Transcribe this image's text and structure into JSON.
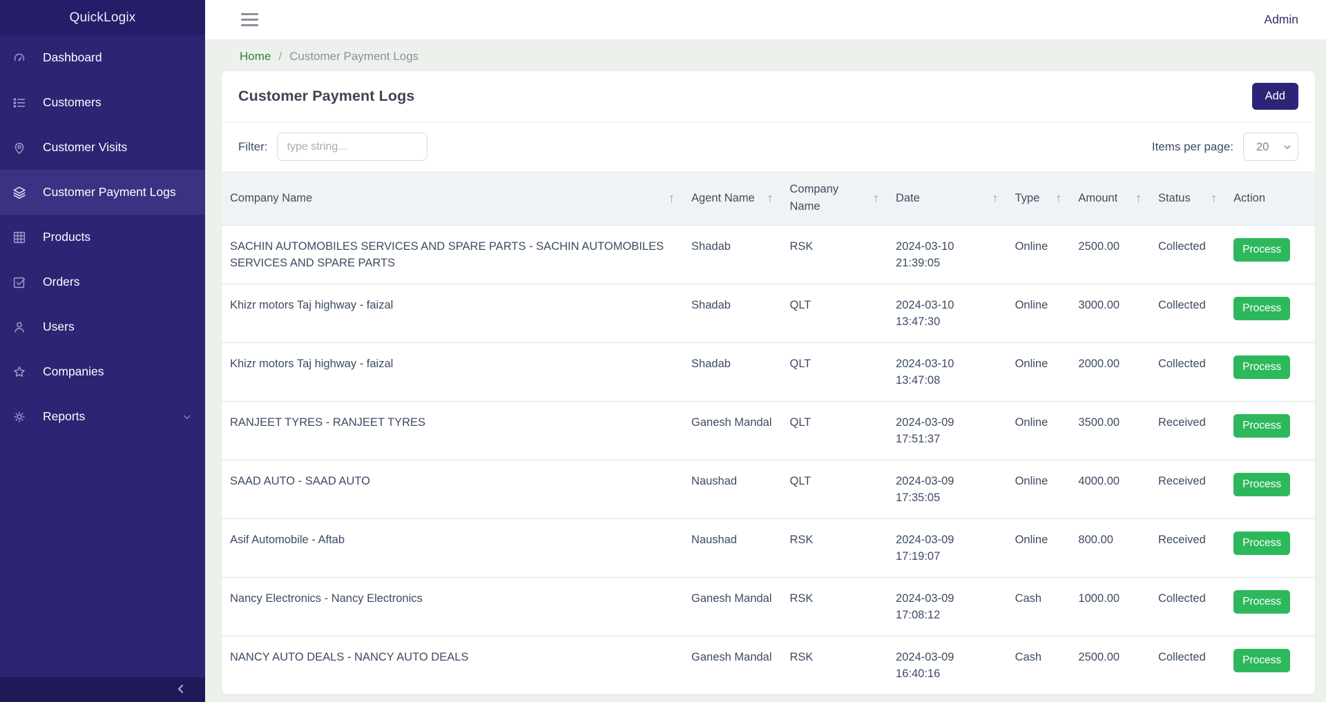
{
  "brand": "QuickLogix",
  "topbar": {
    "admin_label": "Admin"
  },
  "sidebar": {
    "items": [
      {
        "label": "Dashboard",
        "icon": "speedometer",
        "active": false
      },
      {
        "label": "Customers",
        "icon": "list",
        "active": false
      },
      {
        "label": "Customer Visits",
        "icon": "location-pin",
        "active": false
      },
      {
        "label": "Customer Payment Logs",
        "icon": "layers",
        "active": true
      },
      {
        "label": "Products",
        "icon": "grid",
        "active": false
      },
      {
        "label": "Orders",
        "icon": "check-square",
        "active": false
      },
      {
        "label": "Users",
        "icon": "user",
        "active": false
      },
      {
        "label": "Companies",
        "icon": "star",
        "active": false
      },
      {
        "label": "Reports",
        "icon": "gear",
        "active": false,
        "expandable": true
      }
    ]
  },
  "breadcrumb": {
    "home": "Home",
    "separator": "/",
    "current": "Customer Payment Logs"
  },
  "page": {
    "title": "Customer Payment Logs",
    "add_button": "Add",
    "filter_label": "Filter:",
    "filter_placeholder": "type string...",
    "items_per_page_label": "Items per page:",
    "items_per_page_value": "20"
  },
  "table": {
    "columns": [
      {
        "label": "Company Name",
        "sortable": true
      },
      {
        "label": "Agent Name",
        "sortable": true
      },
      {
        "label": "Company Name",
        "sortable": true
      },
      {
        "label": "Date",
        "sortable": true
      },
      {
        "label": "Type",
        "sortable": true
      },
      {
        "label": "Amount",
        "sortable": true
      },
      {
        "label": "Status",
        "sortable": true
      },
      {
        "label": "Action",
        "sortable": false
      }
    ],
    "action_label": "Process",
    "rows": [
      {
        "company": "SACHIN AUTOMOBILES SERVICES AND SPARE PARTS - SACHIN AUTOMOBILES SERVICES AND SPARE PARTS",
        "agent": "Shadab",
        "company_code": "RSK",
        "date": "2024-03-10",
        "time": "21:39:05",
        "type": "Online",
        "amount": "2500.00",
        "status": "Collected"
      },
      {
        "company": "Khizr motors Taj highway - faizal",
        "agent": "Shadab",
        "company_code": "QLT",
        "date": "2024-03-10",
        "time": "13:47:30",
        "type": "Online",
        "amount": "3000.00",
        "status": "Collected"
      },
      {
        "company": "Khizr motors Taj highway - faizal",
        "agent": "Shadab",
        "company_code": "QLT",
        "date": "2024-03-10",
        "time": "13:47:08",
        "type": "Online",
        "amount": "2000.00",
        "status": "Collected"
      },
      {
        "company": "RANJEET TYRES - RANJEET TYRES",
        "agent": "Ganesh Mandal",
        "company_code": "QLT",
        "date": "2024-03-09",
        "time": "17:51:37",
        "type": "Online",
        "amount": "3500.00",
        "status": "Received"
      },
      {
        "company": "SAAD AUTO - SAAD AUTO",
        "agent": "Naushad",
        "company_code": "QLT",
        "date": "2024-03-09",
        "time": "17:35:05",
        "type": "Online",
        "amount": "4000.00",
        "status": "Received"
      },
      {
        "company": "Asif Automobile - Aftab",
        "agent": "Naushad",
        "company_code": "RSK",
        "date": "2024-03-09",
        "time": "17:19:07",
        "type": "Online",
        "amount": "800.00",
        "status": "Received"
      },
      {
        "company": "Nancy Electronics - Nancy Electronics",
        "agent": "Ganesh Mandal",
        "company_code": "RSK",
        "date": "2024-03-09",
        "time": "17:08:12",
        "type": "Cash",
        "amount": "1000.00",
        "status": "Collected"
      },
      {
        "company": "NANCY AUTO DEALS - NANCY AUTO DEALS",
        "agent": "Ganesh Mandal",
        "company_code": "RSK",
        "date": "2024-03-09",
        "time": "16:40:16",
        "type": "Cash",
        "amount": "2500.00",
        "status": "Collected"
      }
    ]
  },
  "colors": {
    "sidebar_bg": "#2c2574",
    "sidebar_header_bg": "#241d67",
    "sidebar_active_bg": "#3b3283",
    "sidebar_footer_bg": "#1f1958",
    "accent_indigo": "#2d2478",
    "success_green": "#2eb85c",
    "breadcrumb_link_green": "#2e7d45",
    "page_bg": "#edf1ec",
    "table_header_bg": "#f0f3f6"
  }
}
